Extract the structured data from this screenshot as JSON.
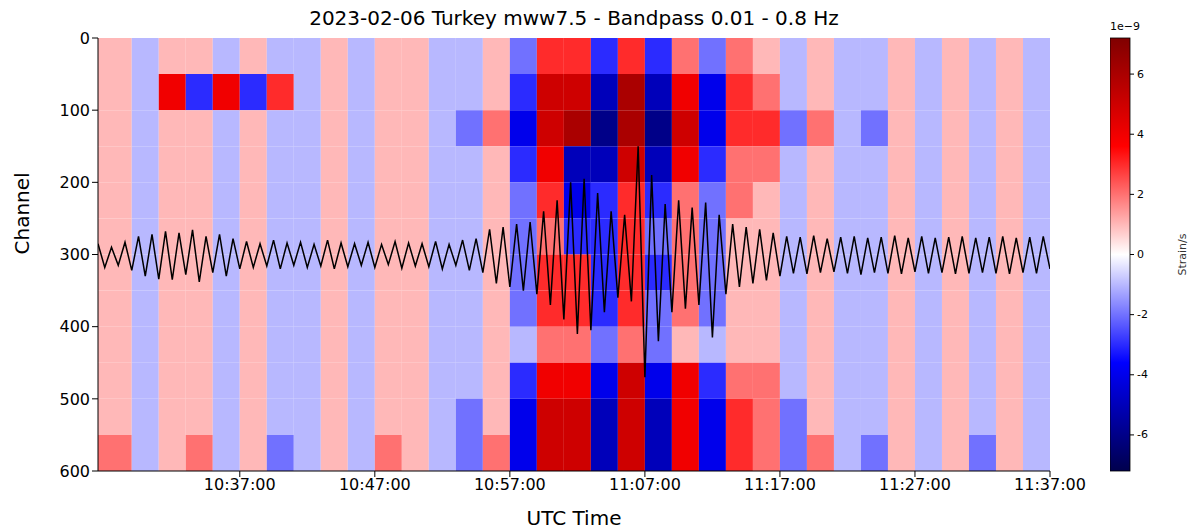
{
  "chart_data": {
    "type": "heatmap",
    "title": "2023-02-06 Turkey mww7.5 - Bandpass 0.01 - 0.8 Hz",
    "x_label": "UTC Time",
    "y_label": "Channel",
    "xlim": [
      626.5,
      697
    ],
    "xticks": [
      {
        "value": 637,
        "label": "10:37:00"
      },
      {
        "value": 647,
        "label": "10:47:00"
      },
      {
        "value": 657,
        "label": "10:57:00"
      },
      {
        "value": 667,
        "label": "11:07:00"
      },
      {
        "value": 677,
        "label": "11:17:00"
      },
      {
        "value": 687,
        "label": "11:27:00"
      },
      {
        "value": 697,
        "label": "11:37:00"
      }
    ],
    "ylim": [
      0,
      600
    ],
    "yticks": [
      0,
      100,
      200,
      300,
      400,
      500,
      600
    ],
    "cells": {
      "x_edges": [
        626.5,
        629,
        631,
        633,
        635,
        637,
        639,
        641,
        643,
        645,
        647,
        649,
        651,
        653,
        655,
        657,
        659,
        661,
        663,
        665,
        667,
        669,
        671,
        673,
        675,
        677,
        679,
        681,
        683,
        685,
        687,
        689,
        691,
        693,
        695,
        697
      ],
      "y_edges": [
        0,
        50,
        100,
        150,
        200,
        250,
        300,
        350,
        400,
        450,
        500,
        550,
        600
      ],
      "values": [
        [
          1,
          -1,
          1,
          1,
          -1,
          1,
          -1,
          -1,
          1,
          -1,
          1,
          1,
          -1,
          -1,
          1,
          -2,
          3,
          3,
          -3,
          3,
          -3,
          2,
          -2,
          2,
          1,
          -1,
          1,
          -1,
          -1,
          1,
          -1,
          1,
          -1,
          1,
          -1
        ],
        [
          1,
          -1,
          4,
          -3,
          4,
          -3,
          3,
          -1,
          1,
          -1,
          1,
          1,
          -1,
          -1,
          1,
          -3,
          5,
          5,
          -5,
          6,
          -5,
          4,
          -4,
          3,
          2,
          -1,
          1,
          -1,
          -1,
          1,
          -1,
          1,
          -1,
          1,
          -1
        ],
        [
          1,
          -1,
          1,
          1,
          -1,
          1,
          -1,
          -1,
          1,
          -1,
          1,
          1,
          -1,
          -2,
          2,
          -4,
          5,
          6,
          -6,
          6,
          -6,
          5,
          -4,
          3,
          3,
          -2,
          2,
          -1,
          -2,
          1,
          -1,
          1,
          -1,
          1,
          -1
        ],
        [
          1,
          -1,
          1,
          1,
          -1,
          1,
          -1,
          -1,
          1,
          -1,
          1,
          1,
          -1,
          -1,
          1,
          -3,
          4,
          -5,
          -5,
          5,
          -5,
          4,
          -3,
          2,
          2,
          -1,
          1,
          -1,
          -1,
          1,
          -1,
          1,
          -1,
          1,
          -1
        ],
        [
          1,
          -1,
          1,
          1,
          -1,
          1,
          -1,
          -1,
          1,
          -1,
          1,
          1,
          -1,
          -1,
          1,
          -2,
          3,
          -4,
          -3,
          3,
          -3,
          2,
          -2,
          2,
          1,
          -1,
          1,
          -1,
          -1,
          1,
          -1,
          1,
          -1,
          1,
          -1
        ],
        [
          1,
          -1,
          1,
          1,
          -1,
          1,
          -1,
          -1,
          1,
          -1,
          1,
          1,
          -1,
          -1,
          1,
          -2,
          2,
          -3,
          -3,
          3,
          -2,
          2,
          -2,
          1,
          1,
          -1,
          1,
          -1,
          -1,
          1,
          -1,
          1,
          -1,
          1,
          -1
        ],
        [
          1,
          -1,
          1,
          1,
          -1,
          1,
          -1,
          -1,
          1,
          -1,
          1,
          1,
          -1,
          -1,
          1,
          -2,
          3,
          3,
          -3,
          3,
          -3,
          2,
          -2,
          1,
          1,
          -1,
          1,
          -1,
          -1,
          1,
          -1,
          1,
          -1,
          1,
          -1
        ],
        [
          1,
          -1,
          1,
          1,
          -1,
          1,
          -1,
          -1,
          1,
          -1,
          1,
          1,
          -1,
          -1,
          1,
          -2,
          3,
          3,
          -3,
          3,
          -2,
          2,
          -2,
          1,
          1,
          -1,
          1,
          -1,
          -1,
          1,
          -1,
          1,
          -1,
          1,
          -1
        ],
        [
          1,
          -1,
          1,
          1,
          -1,
          1,
          -1,
          -1,
          1,
          -1,
          1,
          1,
          -1,
          -1,
          1,
          -1,
          2,
          2,
          -2,
          2,
          -2,
          1,
          -1,
          1,
          1,
          -1,
          1,
          -1,
          -1,
          1,
          -1,
          1,
          -1,
          1,
          -1
        ],
        [
          1,
          -1,
          1,
          1,
          -1,
          1,
          -1,
          -1,
          1,
          -1,
          1,
          1,
          -1,
          -1,
          1,
          -3,
          4,
          4,
          -4,
          5,
          -4,
          4,
          -3,
          2,
          2,
          -1,
          1,
          -1,
          -1,
          1,
          -1,
          1,
          -1,
          1,
          -1
        ],
        [
          1,
          -1,
          1,
          1,
          -1,
          1,
          -1,
          -1,
          1,
          -1,
          1,
          1,
          -1,
          -2,
          1,
          -4,
          5,
          5,
          -5,
          5,
          -5,
          4,
          -4,
          3,
          2,
          -2,
          1,
          -1,
          -1,
          1,
          -1,
          1,
          -1,
          1,
          -1
        ],
        [
          2,
          -1,
          1,
          2,
          -1,
          1,
          -2,
          -1,
          1,
          -1,
          2,
          1,
          -1,
          -2,
          2,
          -4,
          5,
          5,
          -5,
          5,
          -5,
          4,
          -4,
          3,
          2,
          -2,
          2,
          -1,
          -2,
          1,
          -1,
          1,
          -2,
          1,
          -1
        ]
      ]
    },
    "colorbar": {
      "label": "Strain/s",
      "offset_label": "1e−9",
      "range": [
        -7.2,
        7.2
      ],
      "ticks": [
        -6,
        -4,
        -2,
        0,
        2,
        4,
        6
      ]
    },
    "series": [
      {
        "type": "line",
        "color": "#000000",
        "x": [
          626.5,
          627,
          627.5,
          628,
          628.5,
          629,
          629.5,
          630,
          630.5,
          631,
          631.5,
          632,
          632.5,
          633,
          633.5,
          634,
          634.5,
          635,
          635.5,
          636,
          636.5,
          637,
          637.5,
          638,
          638.5,
          639,
          639.5,
          640,
          640.5,
          641,
          641.5,
          642,
          642.5,
          643,
          643.5,
          644,
          644.5,
          645,
          645.5,
          646,
          646.5,
          647,
          647.5,
          648,
          648.5,
          649,
          649.5,
          650,
          650.5,
          651,
          651.5,
          652,
          652.5,
          653,
          653.5,
          654,
          654.5,
          655,
          655.5,
          656,
          656.5,
          657,
          657.5,
          658,
          658.5,
          659,
          659.5,
          660,
          660.5,
          661,
          661.5,
          662,
          662.5,
          663,
          663.5,
          664,
          664.5,
          665,
          665.5,
          666,
          666.5,
          667,
          667.5,
          668,
          668.5,
          669,
          669.5,
          670,
          670.5,
          671,
          671.5,
          672,
          672.5,
          673,
          673.5,
          674,
          674.5,
          675,
          675.5,
          676,
          676.5,
          677,
          677.5,
          678,
          678.5,
          679,
          679.5,
          680,
          680.5,
          681,
          681.5,
          682,
          682.5,
          683,
          683.5,
          684,
          684.5,
          685,
          685.5,
          686,
          686.5,
          687,
          687.5,
          688,
          688.5,
          689,
          689.5,
          690,
          690.5,
          691,
          691.5,
          692,
          692.5,
          693,
          693.5,
          694,
          694.5,
          695,
          695.5,
          696,
          696.5,
          697
        ],
        "values": [
          285,
          318,
          290,
          315,
          283,
          322,
          275,
          330,
          272,
          334,
          268,
          335,
          270,
          328,
          266,
          338,
          275,
          325,
          272,
          330,
          278,
          320,
          282,
          318,
          285,
          316,
          280,
          320,
          284,
          315,
          283,
          318,
          286,
          316,
          280,
          320,
          284,
          317,
          285,
          315,
          283,
          318,
          286,
          314,
          282,
          319,
          284,
          316,
          285,
          317,
          282,
          320,
          286,
          315,
          280,
          322,
          278,
          325,
          265,
          340,
          262,
          345,
          258,
          350,
          255,
          355,
          240,
          370,
          225,
          390,
          200,
          410,
          195,
          405,
          215,
          380,
          240,
          360,
          245,
          365,
          150,
          470,
          190,
          420,
          230,
          380,
          225,
          375,
          235,
          370,
          228,
          415,
          245,
          355,
          258,
          345,
          262,
          340,
          265,
          336,
          270,
          330,
          275,
          326,
          276,
          327,
          274,
          325,
          278,
          324,
          276,
          326,
          275,
          328,
          277,
          325,
          276,
          326,
          274,
          327,
          277,
          324,
          275,
          326,
          277,
          325,
          276,
          327,
          275,
          326,
          277,
          325,
          276,
          326,
          275,
          327,
          277,
          325,
          276,
          326,
          275,
          320
        ]
      }
    ]
  }
}
